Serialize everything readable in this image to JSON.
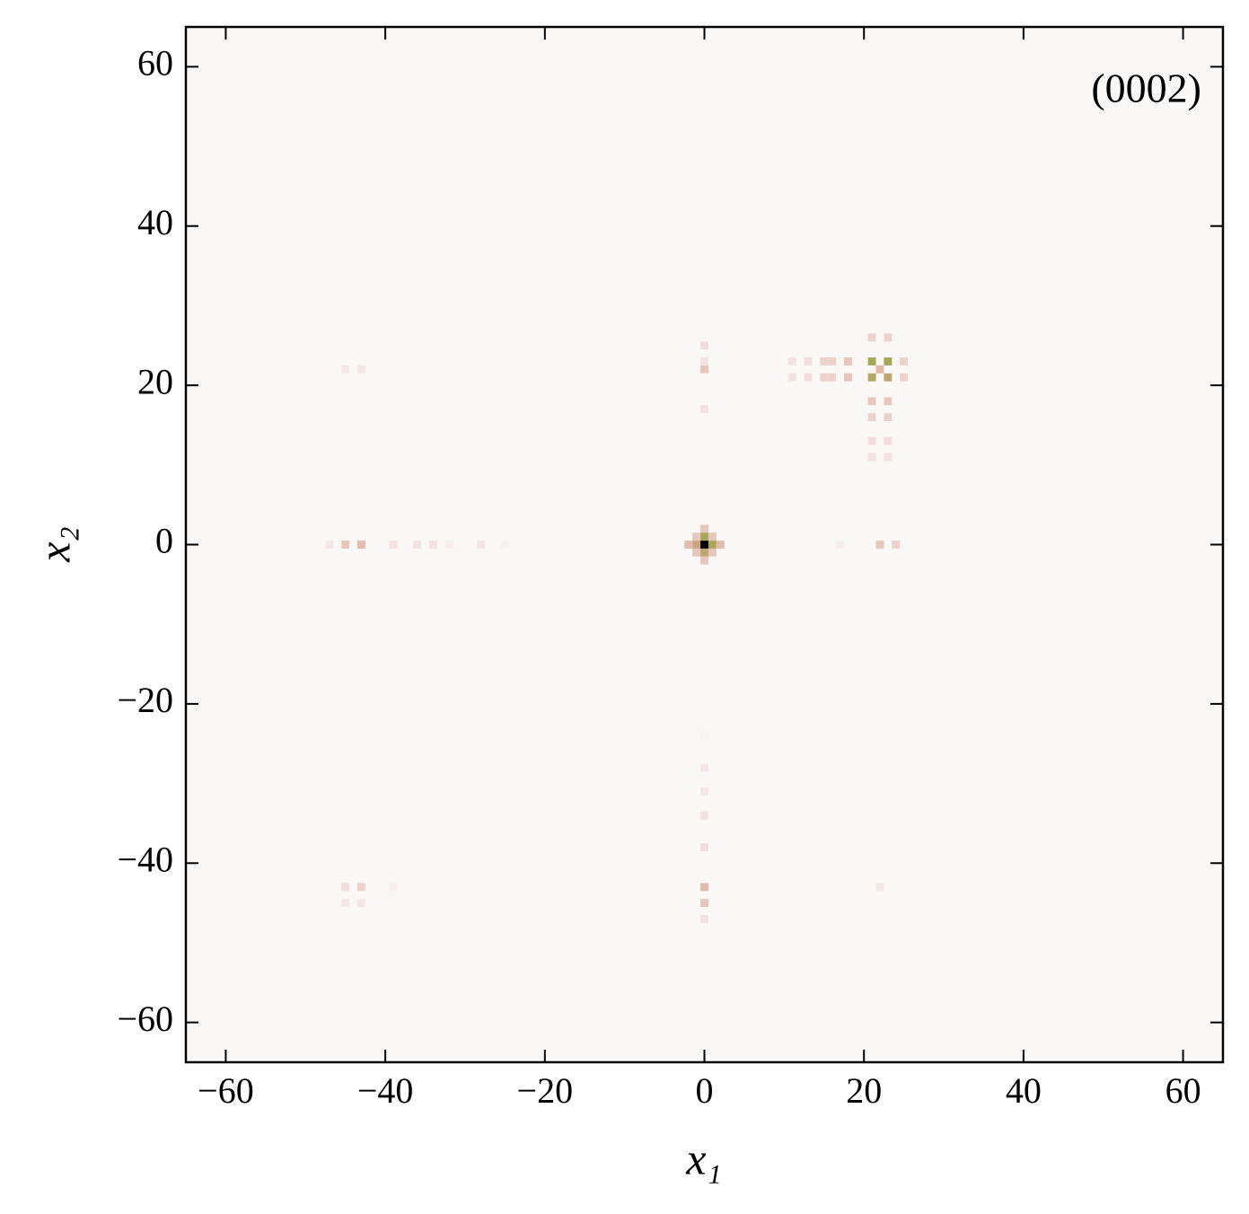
{
  "chart_data": {
    "type": "heatmap",
    "annotation": "(0002)",
    "x_label": "x₁",
    "y_label": "x₂",
    "xlim": [
      -65,
      65
    ],
    "ylim": [
      -65,
      65
    ],
    "xticks": [
      {
        "value": -60,
        "label": "−60"
      },
      {
        "value": -40,
        "label": "−40"
      },
      {
        "value": -20,
        "label": "−20"
      },
      0,
      20,
      40,
      60
    ],
    "yticks": [
      {
        "value": -60,
        "label": "−60"
      },
      {
        "value": -40,
        "label": "−40"
      },
      {
        "value": -20,
        "label": "−20"
      },
      0,
      20,
      40,
      60
    ],
    "background": "#faf8f7",
    "colorscale": [
      "#faf8f7",
      "#f3dcdc",
      "#d6a58c",
      "#9aa84a",
      "#000000"
    ],
    "cell_size": 1,
    "cells": {
      "x": [
        0,
        1,
        -1,
        0,
        0,
        2,
        -2,
        0,
        0,
        1,
        -1,
        1,
        -1,
        0,
        0,
        0,
        0,
        21,
        23,
        21,
        23,
        22,
        11,
        13,
        15,
        16,
        18,
        25,
        11,
        13,
        15,
        16,
        18,
        25,
        21,
        21,
        21,
        21,
        21,
        23,
        23,
        23,
        23,
        23,
        -43,
        -45,
        -47,
        -39,
        -36,
        -34,
        -32,
        -28,
        -25,
        22,
        24,
        17,
        0,
        0,
        0,
        0,
        0,
        0,
        0,
        0,
        -43,
        -45,
        -45,
        -43,
        -39,
        -43,
        -45,
        22
      ],
      "y": [
        0,
        0,
        0,
        1,
        -1,
        0,
        0,
        2,
        -2,
        1,
        1,
        -1,
        -1,
        22,
        25,
        17,
        23,
        23,
        23,
        21,
        21,
        22,
        23,
        23,
        23,
        23,
        23,
        23,
        21,
        21,
        21,
        21,
        21,
        21,
        18,
        16,
        13,
        11,
        26,
        18,
        16,
        13,
        11,
        26,
        0,
        0,
        0,
        0,
        0,
        0,
        0,
        0,
        0,
        0,
        0,
        0,
        -43,
        -45,
        -47,
        -38,
        -34,
        -31,
        -28,
        -24,
        -43,
        -43,
        -45,
        -45,
        -43,
        22,
        22,
        -43
      ],
      "values": [
        1.0,
        0.7,
        0.55,
        0.7,
        0.6,
        0.4,
        0.4,
        0.35,
        0.35,
        0.35,
        0.35,
        0.35,
        0.35,
        0.35,
        0.25,
        0.2,
        0.2,
        0.7,
        0.7,
        0.65,
        0.6,
        0.4,
        0.2,
        0.25,
        0.3,
        0.3,
        0.35,
        0.3,
        0.2,
        0.25,
        0.3,
        0.3,
        0.35,
        0.3,
        0.35,
        0.3,
        0.25,
        0.2,
        0.3,
        0.35,
        0.3,
        0.25,
        0.2,
        0.3,
        0.4,
        0.35,
        0.15,
        0.2,
        0.2,
        0.2,
        0.1,
        0.15,
        0.05,
        0.35,
        0.3,
        0.1,
        0.4,
        0.35,
        0.2,
        0.25,
        0.2,
        0.15,
        0.15,
        0.05,
        0.3,
        0.25,
        0.15,
        0.15,
        0.1,
        0.15,
        0.15,
        0.15
      ]
    }
  }
}
